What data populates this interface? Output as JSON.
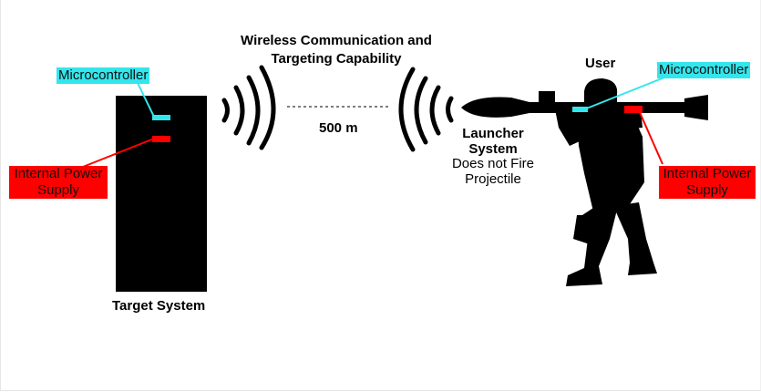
{
  "title": {
    "line1": "Wireless Communication and",
    "line2": "Targeting Capability"
  },
  "distance": "500 m",
  "target": {
    "label": "Target System",
    "microcontroller": "Microcontroller",
    "power_line1": "Internal Power",
    "power_line2": "Supply"
  },
  "user": {
    "label": "User",
    "microcontroller": "Microcontroller",
    "power_line1": "Internal Power",
    "power_line2": "Supply"
  },
  "launcher": {
    "title_line1": "Launcher",
    "title_line2": "System",
    "note_line1": "Does not Fire",
    "note_line2": "Projectile"
  },
  "colors": {
    "microcontroller": "#33e6ec",
    "power_supply": "#ff0000",
    "device": "#000000"
  }
}
